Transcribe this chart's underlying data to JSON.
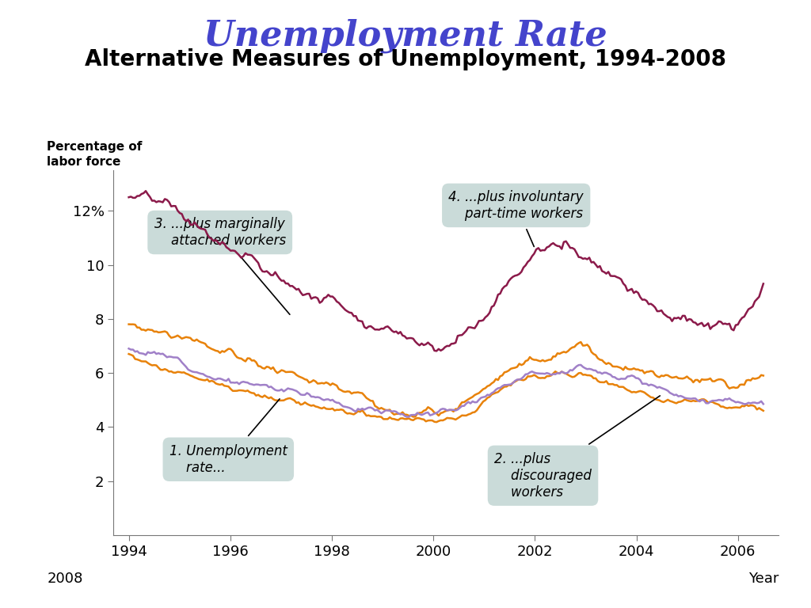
{
  "title1": "Unemployment Rate",
  "title2": "Alternative Measures of Unemployment, 1994-2008",
  "ylabel_line1": "Percentage of",
  "ylabel_line2": "labor force",
  "xlabel": "Year",
  "xlabel2": "2008",
  "title1_color": "#4444cc",
  "title2_color": "#000000",
  "xmin": 1993.7,
  "xmax": 2006.8,
  "ymin": 0,
  "ymax": 13.5,
  "yticks": [
    2,
    4,
    6,
    8,
    10,
    12
  ],
  "ytick_labels": [
    "2",
    "4",
    "6",
    "8",
    "10",
    "12%"
  ],
  "xticks": [
    1994,
    1996,
    1998,
    2000,
    2002,
    2004,
    2006
  ],
  "color_crimson": "#8b1a4a",
  "color_orange": "#e8820a",
  "color_purple": "#a080c8",
  "annotation_box_color": "#c5d8d5",
  "background_color": "#ffffff",
  "figsize": [
    10.24,
    7.68
  ],
  "dpi": 100
}
